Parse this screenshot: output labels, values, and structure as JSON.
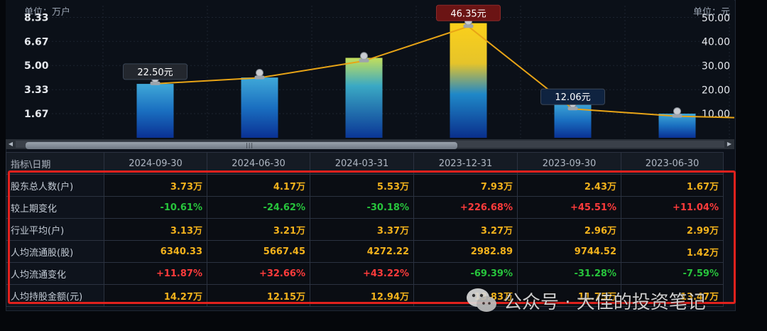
{
  "chart_data": {
    "type": "bar",
    "categories": [
      "2024-09-30",
      "2024-06-30",
      "2024-03-31",
      "2023-12-31",
      "2023-09-30",
      "2023-06-30"
    ],
    "left_axis": {
      "unit_label": "单位：万户",
      "ticks": [
        "8.33",
        "6.67",
        "5.00",
        "3.33",
        "1.67"
      ],
      "tick_values": [
        8.33,
        6.67,
        5.0,
        3.33,
        1.67
      ],
      "range": [
        0,
        9.14
      ]
    },
    "right_axis": {
      "unit_label": "单位：元",
      "ticks": [
        "50.00",
        "40.00",
        "30.00",
        "20.00",
        "10.00"
      ],
      "tick_values": [
        50,
        40,
        30,
        20,
        10
      ],
      "range": [
        0,
        55
      ]
    },
    "series": [
      {
        "type": "bar",
        "axis": "left",
        "values": [
          3.73,
          4.17,
          5.53,
          7.93,
          2.43,
          1.67
        ]
      },
      {
        "type": "line",
        "axis": "right",
        "values": [
          22.5,
          25.0,
          32.0,
          46.35,
          12.06,
          9.0
        ]
      }
    ],
    "callouts": [
      {
        "index": 0,
        "text": "22.50元"
      },
      {
        "index": 3,
        "text": "46.35元"
      },
      {
        "index": 4,
        "text": "12.06元"
      }
    ],
    "grid": true
  },
  "table": {
    "header_label": "指标\\日期",
    "dates": [
      "2024-09-30",
      "2024-06-30",
      "2024-03-31",
      "2023-12-31",
      "2023-09-30",
      "2023-06-30"
    ],
    "rows": [
      {
        "label": "股东总人数(户)",
        "values": [
          "3.73万",
          "4.17万",
          "5.53万",
          "7.93万",
          "2.43万",
          "1.67万"
        ],
        "tone": [
          "",
          "",
          "",
          "",
          "",
          ""
        ]
      },
      {
        "label": "较上期变化",
        "values": [
          "-10.61%",
          "-24.62%",
          "-30.18%",
          "+226.68%",
          "+45.51%",
          "+11.04%"
        ],
        "tone": [
          "neg",
          "neg",
          "neg",
          "pos",
          "pos",
          "pos"
        ]
      },
      {
        "label": "行业平均(户)",
        "values": [
          "3.13万",
          "3.21万",
          "3.37万",
          "3.27万",
          "2.96万",
          "2.99万"
        ],
        "tone": [
          "",
          "",
          "",
          "",
          "",
          ""
        ]
      },
      {
        "label": "人均流通股(股)",
        "values": [
          "6340.33",
          "5667.45",
          "4272.22",
          "2982.89",
          "9744.52",
          "1.42万"
        ],
        "tone": [
          "",
          "",
          "",
          "",
          "",
          ""
        ]
      },
      {
        "label": "人均流通变化",
        "values": [
          "+11.87%",
          "+32.66%",
          "+43.22%",
          "-69.39%",
          "-31.28%",
          "-7.59%"
        ],
        "tone": [
          "pos",
          "pos",
          "pos",
          "neg",
          "neg",
          "neg"
        ]
      },
      {
        "label": "人均持股金额(元)",
        "values": [
          "14.27万",
          "12.15万",
          "12.94万",
          "13.83万",
          "11.75万",
          "13.47万"
        ],
        "tone": [
          "",
          "",
          "",
          "",
          "",
          ""
        ]
      }
    ]
  },
  "watermark": {
    "text": "公众号 · 大佳的投资笔记",
    "icon": "wechat-icon"
  },
  "colors": {
    "bar_top": "#f7c31a",
    "bar_bottom": "#0a3c9c",
    "line": "#e8a416",
    "positive": "#ff3b3b",
    "negative": "#27c43c",
    "highlight": "#e0211d"
  }
}
